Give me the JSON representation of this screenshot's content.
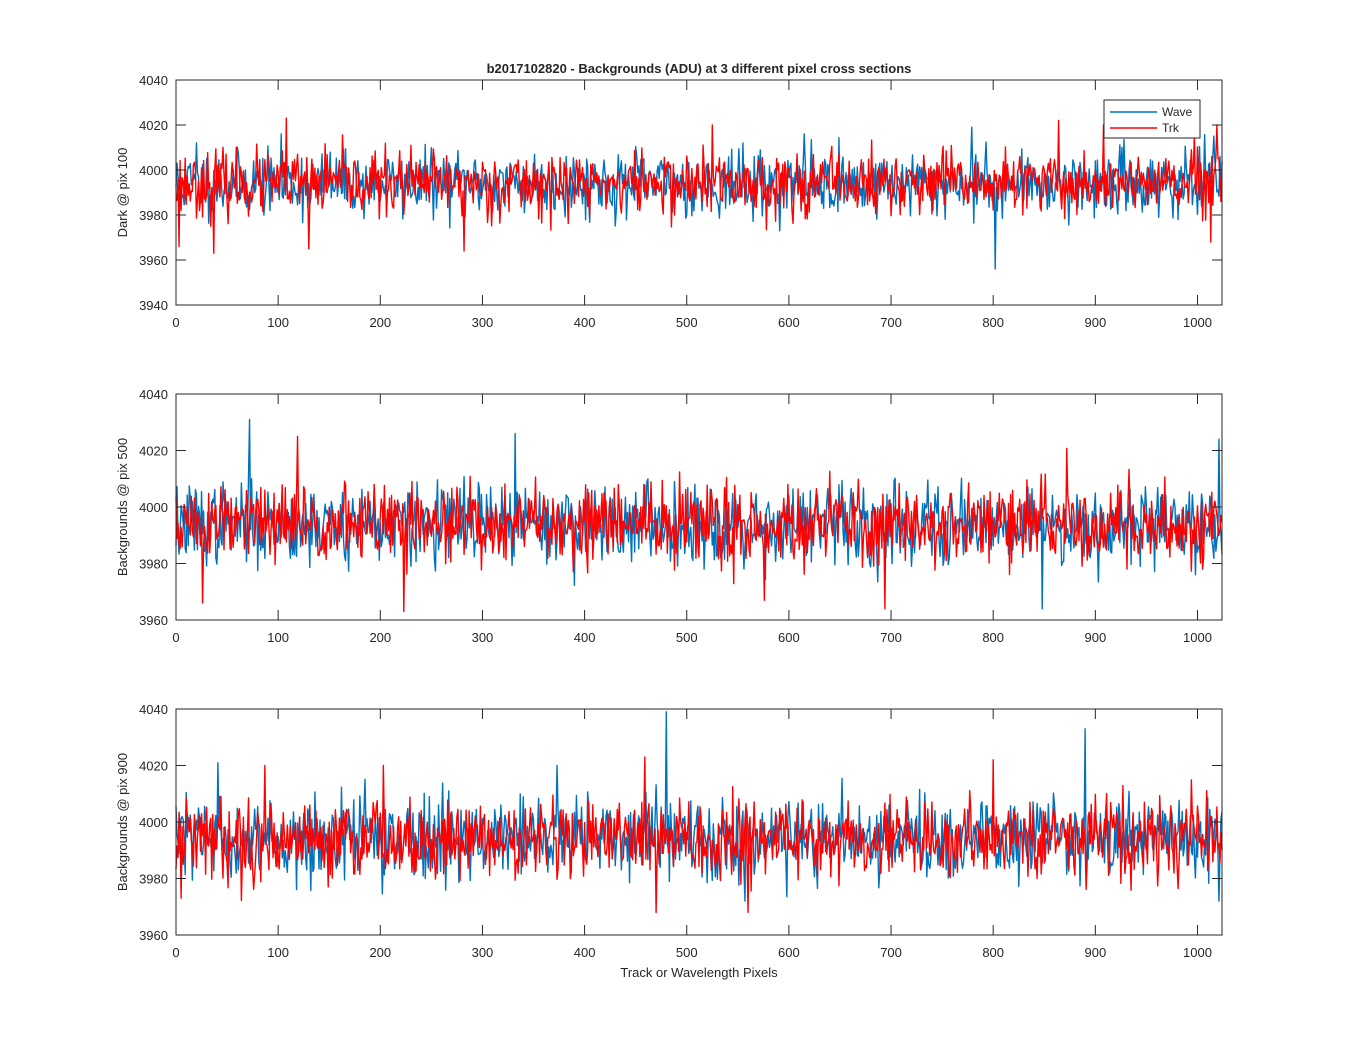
{
  "chart_data": [
    {
      "type": "line",
      "title": "b2017102820 - Backgrounds (ADU) at 3 different pixel cross sections",
      "xlabel": "",
      "ylabel": "Dark @ pix 100",
      "xlim": [
        0,
        1024
      ],
      "ylim": [
        3940,
        4040
      ],
      "xticks": [
        0,
        100,
        200,
        300,
        400,
        500,
        600,
        700,
        800,
        900,
        1000
      ],
      "yticks": [
        3940,
        3960,
        3980,
        4000,
        4020,
        4040
      ],
      "noise": {
        "mean": 3994,
        "sd": 7,
        "min": 3956,
        "max": 4023
      },
      "series": [
        {
          "name": "Wave",
          "color": "#0072BD",
          "seed": 11,
          "spikes": [
            [
              20,
              4012
            ],
            [
              103,
              4016
            ],
            [
              615,
              4016
            ],
            [
              779,
              4019
            ],
            [
              802,
              3956
            ],
            [
              1016,
              4015
            ]
          ]
        },
        {
          "name": "Trk",
          "color": "#FF0000",
          "seed": 23,
          "spikes": [
            [
              3,
              3966
            ],
            [
              37,
              3963
            ],
            [
              108,
              4023
            ],
            [
              130,
              3965
            ],
            [
              282,
              3964
            ],
            [
              525,
              4020
            ],
            [
              864,
              4022
            ],
            [
              908,
              4020
            ],
            [
              1013,
              3968
            ],
            [
              1019,
              4020
            ]
          ]
        }
      ],
      "legend": {
        "location": "top-right",
        "entries": [
          "Wave",
          "Trk"
        ]
      }
    },
    {
      "type": "line",
      "title": "",
      "xlabel": "",
      "ylabel": "Backgrounds @ pix 500",
      "xlim": [
        0,
        1024
      ],
      "ylim": [
        3960,
        4040
      ],
      "xticks": [
        0,
        100,
        200,
        300,
        400,
        500,
        600,
        700,
        800,
        900,
        1000
      ],
      "yticks": [
        3960,
        3980,
        4000,
        4020,
        4040
      ],
      "noise": {
        "mean": 3994,
        "sd": 7,
        "min": 3963,
        "max": 4031
      },
      "series": [
        {
          "name": "Wave",
          "color": "#0072BD",
          "seed": 37,
          "spikes": [
            [
              72,
              4031
            ],
            [
              332,
              4026
            ],
            [
              848,
              3964
            ],
            [
              1021,
              4024
            ]
          ]
        },
        {
          "name": "Trk",
          "color": "#FF0000",
          "seed": 51,
          "spikes": [
            [
              26,
              3966
            ],
            [
              119,
              4025
            ],
            [
              223,
              3963
            ],
            [
              694,
              3964
            ],
            [
              576,
              3967
            ],
            [
              1005,
              3978
            ]
          ]
        }
      ]
    },
    {
      "type": "line",
      "title": "",
      "xlabel": "Track or Wavelength Pixels",
      "ylabel": "Backgrounds @ pix 900",
      "xlim": [
        0,
        1024
      ],
      "ylim": [
        3960,
        4040
      ],
      "xticks": [
        0,
        100,
        200,
        300,
        400,
        500,
        600,
        700,
        800,
        900,
        1000
      ],
      "yticks": [
        3960,
        3980,
        4000,
        4020,
        4040
      ],
      "noise": {
        "mean": 3994,
        "sd": 7,
        "min": 3968,
        "max": 4039
      },
      "series": [
        {
          "name": "Wave",
          "color": "#0072BD",
          "seed": 63,
          "spikes": [
            [
              41,
              4021
            ],
            [
              373,
              4020
            ],
            [
              480,
              4039
            ],
            [
              890,
              4033
            ],
            [
              1021,
              3972
            ]
          ]
        },
        {
          "name": "Trk",
          "color": "#FF0000",
          "seed": 79,
          "spikes": [
            [
              5,
              3973
            ],
            [
              87,
              4020
            ],
            [
              203,
              4020
            ],
            [
              459,
              4023
            ],
            [
              470,
              3968
            ],
            [
              560,
              3968
            ],
            [
              800,
              4022
            ]
          ]
        }
      ]
    }
  ]
}
